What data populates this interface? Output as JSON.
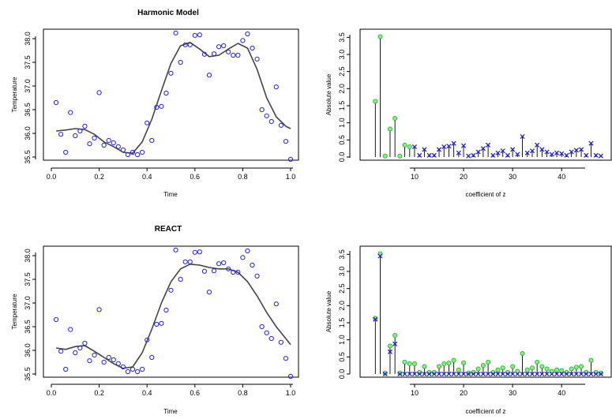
{
  "colors": {
    "observed_points": "#2222ee",
    "fitted_curve": "#444444",
    "coef_original": "#22aa22",
    "coef_estimate": "#2222cc"
  },
  "chart_data": [
    {
      "id": "harmonic-fit",
      "type": "scatter",
      "title": "Harmonic Model",
      "xlabel": "Time",
      "ylabel": "Temperature",
      "xlim": [
        0,
        1
      ],
      "ylim": [
        35.5,
        38.1
      ],
      "xticks": [
        "0.0",
        "0.2",
        "0.4",
        "0.6",
        "0.8",
        "1.0"
      ],
      "yticks": [
        "35.5",
        "36.0",
        "36.5",
        "37.0",
        "37.5",
        "38.0"
      ],
      "points": {
        "x": [
          0.02,
          0.04,
          0.06,
          0.08,
          0.1,
          0.12,
          0.14,
          0.16,
          0.18,
          0.2,
          0.22,
          0.24,
          0.26,
          0.28,
          0.3,
          0.32,
          0.34,
          0.36,
          0.38,
          0.4,
          0.42,
          0.44,
          0.46,
          0.48,
          0.5,
          0.52,
          0.54,
          0.56,
          0.58,
          0.6,
          0.62,
          0.64,
          0.66,
          0.68,
          0.7,
          0.72,
          0.74,
          0.76,
          0.78,
          0.8,
          0.82,
          0.84,
          0.86,
          0.88,
          0.9,
          0.92,
          0.94,
          0.96,
          0.98,
          1.0
        ],
        "y": [
          36.65,
          35.98,
          35.6,
          36.44,
          35.95,
          36.05,
          36.15,
          35.78,
          35.9,
          36.86,
          35.75,
          35.85,
          35.8,
          35.72,
          35.65,
          35.55,
          35.6,
          35.55,
          35.6,
          36.22,
          35.85,
          36.55,
          36.57,
          36.85,
          37.27,
          38.12,
          37.5,
          37.87,
          37.87,
          38.07,
          38.08,
          37.67,
          37.23,
          37.68,
          37.83,
          37.85,
          37.72,
          37.65,
          37.65,
          37.96,
          38.1,
          37.8,
          37.57,
          36.5,
          36.37,
          36.25,
          36.98,
          36.17,
          35.83,
          35.45
        ]
      },
      "fitted": {
        "x": [
          0.02,
          0.06,
          0.1,
          0.14,
          0.18,
          0.22,
          0.26,
          0.3,
          0.34,
          0.38,
          0.42,
          0.46,
          0.5,
          0.54,
          0.58,
          0.62,
          0.66,
          0.7,
          0.74,
          0.78,
          0.82,
          0.86,
          0.9,
          0.94,
          0.98,
          1.0
        ],
        "y": [
          36.05,
          36.07,
          36.1,
          36.08,
          35.98,
          35.82,
          35.72,
          35.6,
          35.58,
          35.82,
          36.3,
          36.9,
          37.48,
          37.85,
          37.92,
          37.78,
          37.62,
          37.65,
          37.78,
          37.9,
          37.8,
          37.35,
          36.75,
          36.35,
          36.15,
          36.1
        ]
      }
    },
    {
      "id": "harmonic-coef",
      "type": "scatter",
      "xlabel": "coefficient of z",
      "ylabel": "Absolute value",
      "xlim": [
        0.5,
        48.5
      ],
      "ylim": [
        0,
        3.6
      ],
      "xticks": [
        "10",
        "20",
        "30",
        "40"
      ],
      "yticks": [
        "0.0",
        "0.5",
        "1.0",
        "1.5",
        "2.0",
        "2.5",
        "3.0",
        "3.5"
      ],
      "coefficients": [
        {
          "k": 2,
          "value": 1.63,
          "marker": "circle"
        },
        {
          "k": 3,
          "value": 3.52,
          "marker": "circle"
        },
        {
          "k": 4,
          "value": 0.03,
          "marker": "circle"
        },
        {
          "k": 5,
          "value": 0.82,
          "marker": "circle"
        },
        {
          "k": 6,
          "value": 1.13,
          "marker": "circle"
        },
        {
          "k": 7,
          "value": 0.03,
          "marker": "circle"
        },
        {
          "k": 8,
          "value": 0.35,
          "marker": "circle"
        },
        {
          "k": 9,
          "value": 0.3,
          "marker": "circle"
        },
        {
          "k": 10,
          "value": 0.3,
          "marker": "cross"
        },
        {
          "k": 11,
          "value": 0.05,
          "marker": "cross"
        },
        {
          "k": 12,
          "value": 0.22,
          "marker": "cross"
        },
        {
          "k": 13,
          "value": 0.05,
          "marker": "cross"
        },
        {
          "k": 14,
          "value": 0.05,
          "marker": "cross"
        },
        {
          "k": 15,
          "value": 0.22,
          "marker": "cross"
        },
        {
          "k": 16,
          "value": 0.3,
          "marker": "cross"
        },
        {
          "k": 17,
          "value": 0.32,
          "marker": "cross"
        },
        {
          "k": 18,
          "value": 0.4,
          "marker": "cross"
        },
        {
          "k": 19,
          "value": 0.12,
          "marker": "cross"
        },
        {
          "k": 20,
          "value": 0.33,
          "marker": "cross"
        },
        {
          "k": 21,
          "value": 0.03,
          "marker": "cross"
        },
        {
          "k": 22,
          "value": 0.05,
          "marker": "cross"
        },
        {
          "k": 23,
          "value": 0.15,
          "marker": "cross"
        },
        {
          "k": 24,
          "value": 0.25,
          "marker": "cross"
        },
        {
          "k": 25,
          "value": 0.35,
          "marker": "cross"
        },
        {
          "k": 26,
          "value": 0.05,
          "marker": "cross"
        },
        {
          "k": 27,
          "value": 0.12,
          "marker": "cross"
        },
        {
          "k": 28,
          "value": 0.18,
          "marker": "cross"
        },
        {
          "k": 29,
          "value": 0.05,
          "marker": "cross"
        },
        {
          "k": 30,
          "value": 0.22,
          "marker": "cross"
        },
        {
          "k": 31,
          "value": 0.08,
          "marker": "cross"
        },
        {
          "k": 32,
          "value": 0.6,
          "marker": "cross"
        },
        {
          "k": 33,
          "value": 0.12,
          "marker": "cross"
        },
        {
          "k": 34,
          "value": 0.18,
          "marker": "cross"
        },
        {
          "k": 35,
          "value": 0.35,
          "marker": "cross"
        },
        {
          "k": 36,
          "value": 0.22,
          "marker": "cross"
        },
        {
          "k": 37,
          "value": 0.15,
          "marker": "cross"
        },
        {
          "k": 38,
          "value": 0.08,
          "marker": "cross"
        },
        {
          "k": 39,
          "value": 0.12,
          "marker": "cross"
        },
        {
          "k": 40,
          "value": 0.1,
          "marker": "cross"
        },
        {
          "k": 41,
          "value": 0.05,
          "marker": "cross"
        },
        {
          "k": 42,
          "value": 0.15,
          "marker": "cross"
        },
        {
          "k": 43,
          "value": 0.2,
          "marker": "cross"
        },
        {
          "k": 44,
          "value": 0.22,
          "marker": "cross"
        },
        {
          "k": 45,
          "value": 0.05,
          "marker": "cross"
        },
        {
          "k": 46,
          "value": 0.4,
          "marker": "cross"
        },
        {
          "k": 47,
          "value": 0.05,
          "marker": "cross"
        },
        {
          "k": 48,
          "value": 0.03,
          "marker": "cross"
        }
      ]
    },
    {
      "id": "react-fit",
      "type": "scatter",
      "title": "REACT",
      "xlabel": "Time",
      "ylabel": "Temperature",
      "xlim": [
        0,
        1
      ],
      "ylim": [
        35.5,
        38.1
      ],
      "xticks": [
        "0.0",
        "0.2",
        "0.4",
        "0.6",
        "0.8",
        "1.0"
      ],
      "yticks": [
        "35.5",
        "36.0",
        "36.5",
        "37.0",
        "37.5",
        "38.0"
      ],
      "points": {
        "x": [
          0.02,
          0.04,
          0.06,
          0.08,
          0.1,
          0.12,
          0.14,
          0.16,
          0.18,
          0.2,
          0.22,
          0.24,
          0.26,
          0.28,
          0.3,
          0.32,
          0.34,
          0.36,
          0.38,
          0.4,
          0.42,
          0.44,
          0.46,
          0.48,
          0.5,
          0.52,
          0.54,
          0.56,
          0.58,
          0.6,
          0.62,
          0.64,
          0.66,
          0.68,
          0.7,
          0.72,
          0.74,
          0.76,
          0.78,
          0.8,
          0.82,
          0.84,
          0.86,
          0.88,
          0.9,
          0.92,
          0.94,
          0.96,
          0.98,
          1.0
        ],
        "y": [
          36.65,
          35.98,
          35.6,
          36.44,
          35.95,
          36.05,
          36.15,
          35.78,
          35.9,
          36.86,
          35.75,
          35.85,
          35.8,
          35.72,
          35.65,
          35.55,
          35.6,
          35.55,
          35.6,
          36.22,
          35.85,
          36.55,
          36.57,
          36.85,
          37.27,
          38.12,
          37.5,
          37.87,
          37.87,
          38.07,
          38.08,
          37.67,
          37.23,
          37.68,
          37.83,
          37.85,
          37.72,
          37.65,
          37.65,
          37.96,
          38.1,
          37.8,
          37.57,
          36.5,
          36.37,
          36.25,
          36.98,
          36.17,
          35.83,
          35.45
        ]
      },
      "fitted": {
        "x": [
          0.02,
          0.06,
          0.1,
          0.14,
          0.18,
          0.22,
          0.26,
          0.3,
          0.34,
          0.38,
          0.42,
          0.46,
          0.5,
          0.54,
          0.58,
          0.62,
          0.66,
          0.7,
          0.74,
          0.78,
          0.82,
          0.86,
          0.9,
          0.94,
          0.98,
          1.0
        ],
        "y": [
          36.05,
          36.02,
          36.08,
          36.1,
          35.98,
          35.85,
          35.72,
          35.62,
          35.65,
          35.95,
          36.45,
          37.0,
          37.45,
          37.72,
          37.82,
          37.8,
          37.75,
          37.72,
          37.72,
          37.65,
          37.45,
          37.15,
          36.8,
          36.5,
          36.25,
          36.12
        ]
      }
    },
    {
      "id": "react-coef",
      "type": "scatter",
      "xlabel": "coefficient of z",
      "ylabel": "Absolute value",
      "xlim": [
        0.5,
        48.5
      ],
      "ylim": [
        0,
        3.6
      ],
      "xticks": [
        "10",
        "20",
        "30",
        "40"
      ],
      "yticks": [
        "0.0",
        "0.5",
        "1.0",
        "1.5",
        "2.0",
        "2.5",
        "3.0",
        "3.5"
      ],
      "coefficients": [
        {
          "k": 2,
          "value": 1.63,
          "estimate": 1.6
        },
        {
          "k": 3,
          "value": 3.52,
          "estimate": 3.45
        },
        {
          "k": 4,
          "value": 0.03,
          "estimate": 0.0
        },
        {
          "k": 5,
          "value": 0.82,
          "estimate": 0.65
        },
        {
          "k": 6,
          "value": 1.13,
          "estimate": 0.88
        },
        {
          "k": 7,
          "value": 0.03,
          "estimate": 0.0
        },
        {
          "k": 8,
          "value": 0.35,
          "estimate": 0.0
        },
        {
          "k": 9,
          "value": 0.3,
          "estimate": 0.0
        },
        {
          "k": 10,
          "value": 0.3,
          "estimate": 0.0
        },
        {
          "k": 11,
          "value": 0.05,
          "estimate": 0.0
        },
        {
          "k": 12,
          "value": 0.22,
          "estimate": 0.0
        },
        {
          "k": 13,
          "value": 0.05,
          "estimate": 0.0
        },
        {
          "k": 14,
          "value": 0.05,
          "estimate": 0.0
        },
        {
          "k": 15,
          "value": 0.22,
          "estimate": 0.0
        },
        {
          "k": 16,
          "value": 0.3,
          "estimate": 0.0
        },
        {
          "k": 17,
          "value": 0.32,
          "estimate": 0.0
        },
        {
          "k": 18,
          "value": 0.4,
          "estimate": 0.0
        },
        {
          "k": 19,
          "value": 0.12,
          "estimate": 0.0
        },
        {
          "k": 20,
          "value": 0.33,
          "estimate": 0.0
        },
        {
          "k": 21,
          "value": 0.03,
          "estimate": 0.0
        },
        {
          "k": 22,
          "value": 0.05,
          "estimate": 0.0
        },
        {
          "k": 23,
          "value": 0.15,
          "estimate": 0.0
        },
        {
          "k": 24,
          "value": 0.25,
          "estimate": 0.0
        },
        {
          "k": 25,
          "value": 0.35,
          "estimate": 0.0
        },
        {
          "k": 26,
          "value": 0.05,
          "estimate": 0.0
        },
        {
          "k": 27,
          "value": 0.12,
          "estimate": 0.0
        },
        {
          "k": 28,
          "value": 0.18,
          "estimate": 0.0
        },
        {
          "k": 29,
          "value": 0.05,
          "estimate": 0.0
        },
        {
          "k": 30,
          "value": 0.22,
          "estimate": 0.0
        },
        {
          "k": 31,
          "value": 0.08,
          "estimate": 0.0
        },
        {
          "k": 32,
          "value": 0.6,
          "estimate": 0.0
        },
        {
          "k": 33,
          "value": 0.12,
          "estimate": 0.0
        },
        {
          "k": 34,
          "value": 0.18,
          "estimate": 0.0
        },
        {
          "k": 35,
          "value": 0.35,
          "estimate": 0.0
        },
        {
          "k": 36,
          "value": 0.22,
          "estimate": 0.0
        },
        {
          "k": 37,
          "value": 0.15,
          "estimate": 0.0
        },
        {
          "k": 38,
          "value": 0.08,
          "estimate": 0.0
        },
        {
          "k": 39,
          "value": 0.12,
          "estimate": 0.0
        },
        {
          "k": 40,
          "value": 0.1,
          "estimate": 0.0
        },
        {
          "k": 41,
          "value": 0.05,
          "estimate": 0.0
        },
        {
          "k": 42,
          "value": 0.15,
          "estimate": 0.0
        },
        {
          "k": 43,
          "value": 0.2,
          "estimate": 0.0
        },
        {
          "k": 44,
          "value": 0.22,
          "estimate": 0.0
        },
        {
          "k": 45,
          "value": 0.05,
          "estimate": 0.0
        },
        {
          "k": 46,
          "value": 0.4,
          "estimate": 0.0
        },
        {
          "k": 47,
          "value": 0.05,
          "estimate": 0.0
        },
        {
          "k": 48,
          "value": 0.03,
          "estimate": 0.0
        }
      ]
    }
  ]
}
